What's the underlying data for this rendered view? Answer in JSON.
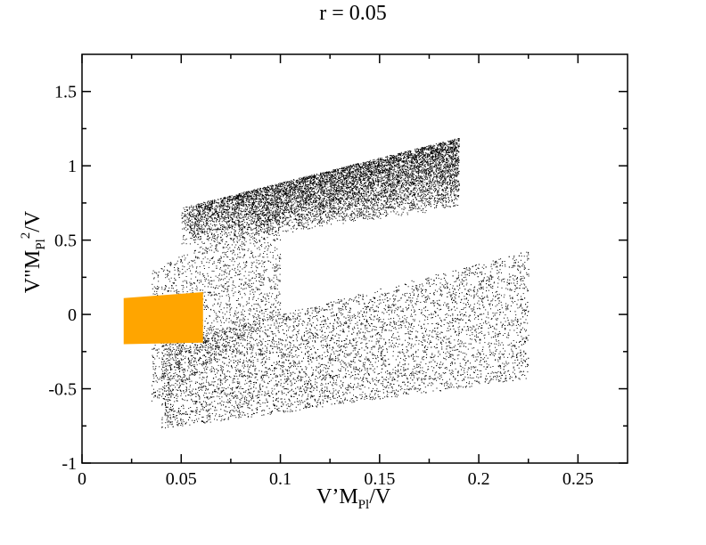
{
  "chart_data": {
    "type": "scatter",
    "title": "r = 0.05",
    "xlabel": {
      "a": "V’M",
      "sub": "Pl",
      "b": "/V"
    },
    "ylabel": {
      "a": "V\"M",
      "sub": "Pl",
      "sup": "2",
      "b": "/V"
    },
    "xlim": [
      0,
      0.275
    ],
    "ylim": [
      -1,
      1.75
    ],
    "x_ticks": [
      0,
      0.05,
      0.1,
      0.15,
      0.2,
      0.25
    ],
    "x_tick_labels": [
      "0",
      "0.05",
      "0.1",
      "0.15",
      "0.2",
      "0.25"
    ],
    "y_ticks": [
      -1,
      -0.5,
      0,
      0.5,
      1,
      1.5
    ],
    "y_tick_labels": [
      "-1",
      "-0.5",
      "0",
      "0.5",
      "1",
      "1.5"
    ],
    "grid": false,
    "series": [
      {
        "color": "#000000",
        "regions": [
          {
            "x": [
              0.05,
              0.19
            ],
            "y_low": [
              0.45,
              0.72
            ],
            "y_high": [
              0.72,
              1.19
            ],
            "density": "high"
          },
          {
            "x": [
              0.04,
              0.225
            ],
            "y_low": [
              -0.77,
              -0.43
            ],
            "y_high": [
              -0.2,
              0.43
            ],
            "density": "medium"
          },
          {
            "x": [
              0.035,
              0.1
            ],
            "y_low": [
              -0.6,
              0.0
            ],
            "y_high": [
              0.3,
              0.72
            ],
            "density": "low"
          }
        ]
      },
      {
        "color": "#ffa500",
        "regions": [
          {
            "x": [
              0.021,
              0.061
            ],
            "y_low": [
              -0.2,
              -0.19
            ],
            "y_high": [
              0.11,
              0.15
            ],
            "density": "solid"
          }
        ]
      }
    ]
  }
}
